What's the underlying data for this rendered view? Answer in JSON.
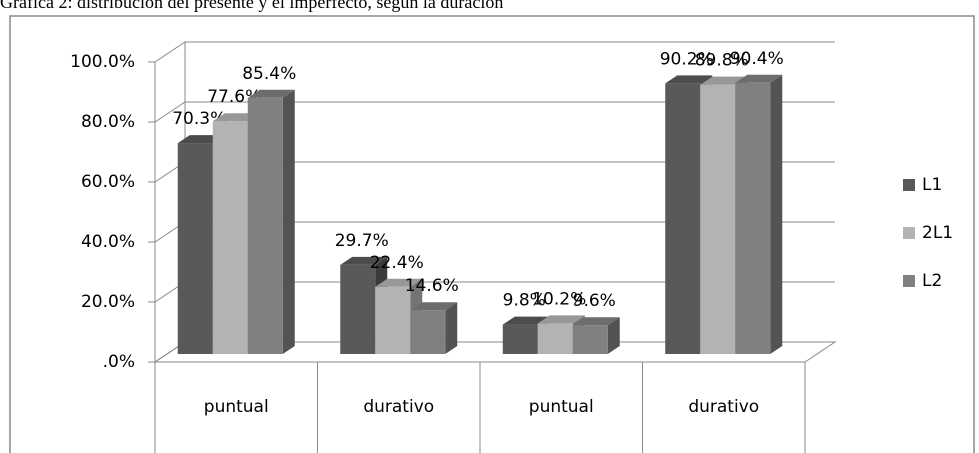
{
  "chart_data": {
    "type": "bar3d",
    "title": "Gráfica 2: distribución del presente y el imperfecto, según la duración",
    "categories": [
      "puntual",
      "durativo",
      "puntual",
      "durativo"
    ],
    "series": [
      {
        "name": "L1",
        "color": "#595959",
        "values": [
          70.3,
          29.7,
          9.8,
          90.2
        ],
        "value_labels": [
          "70.3%",
          "29.7%",
          "9.8%",
          "90.2%"
        ]
      },
      {
        "name": "2L1",
        "color": "#b3b3b3",
        "values": [
          77.6,
          22.4,
          10.2,
          89.8
        ],
        "value_labels": [
          "77.6%",
          "22.4%",
          "10.2%",
          "89.8%"
        ]
      },
      {
        "name": "L2",
        "color": "#808080",
        "values": [
          85.4,
          14.6,
          9.6,
          90.4
        ],
        "value_labels": [
          "85.4%",
          "14.6%",
          "9.6%",
          "90.4%"
        ]
      }
    ],
    "ylim": [
      0,
      100
    ],
    "yticks": [
      {
        "value": 0,
        "label": ".0%"
      },
      {
        "value": 20,
        "label": "20.0%"
      },
      {
        "value": 40,
        "label": "40.0%"
      },
      {
        "value": 60,
        "label": "60.0%"
      },
      {
        "value": 80,
        "label": "80.0%"
      },
      {
        "value": 100,
        "label": "100.0%"
      }
    ],
    "grid": true,
    "legend": "right"
  }
}
